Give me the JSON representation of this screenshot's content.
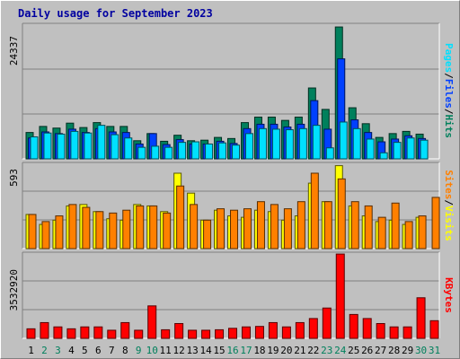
{
  "title": "Daily usage for September 2023",
  "colors": {
    "background": "#c0c0c0",
    "title": "#0000a0",
    "hits": "#00805c",
    "files": "#0040ff",
    "pages": "#00e0ff",
    "visits": "#ffff00",
    "sites": "#ff8000",
    "kbytes": "#ff0000",
    "weekend_label": "#00805c",
    "weekday_label": "#000000",
    "grid": "#808080"
  },
  "labels": {
    "pages": "Pages",
    "files": "Files",
    "hits": "Hits",
    "separator": "/",
    "sites": "Sites",
    "visits": "Visits",
    "kbytes": "KBytes"
  },
  "chart_data": [
    {
      "type": "bar",
      "panel": "hits-files-pages",
      "ymax_label": "24337",
      "ylim": [
        0,
        24337
      ],
      "x": [
        1,
        2,
        3,
        4,
        5,
        6,
        7,
        8,
        9,
        10,
        11,
        12,
        13,
        14,
        15,
        16,
        17,
        18,
        19,
        20,
        21,
        22,
        23,
        24,
        25,
        26,
        27,
        28,
        29,
        30,
        31
      ],
      "series": [
        {
          "name": "Hits",
          "values": [
            4800,
            5900,
            5600,
            6500,
            5700,
            6600,
            5900,
            5900,
            3300,
            4600,
            3200,
            4300,
            3300,
            3400,
            3900,
            3700,
            6600,
            7600,
            7600,
            7000,
            7600,
            12900,
            9000,
            24000,
            9300,
            6400,
            3900,
            4600,
            5000,
            4500,
            0
          ]
        },
        {
          "name": "Files",
          "values": [
            3800,
            4900,
            4600,
            5400,
            4800,
            5500,
            4900,
            4800,
            2700,
            4600,
            2600,
            3500,
            2700,
            2700,
            3200,
            2800,
            5500,
            6300,
            6300,
            5800,
            6300,
            10600,
            5400,
            18200,
            7100,
            4800,
            3100,
            3600,
            4200,
            3700,
            0
          ]
        },
        {
          "name": "Pages",
          "values": [
            4000,
            4700,
            4500,
            5000,
            4700,
            6100,
            4400,
            3800,
            2100,
            2300,
            2100,
            3000,
            3100,
            2700,
            2900,
            2500,
            4600,
            5500,
            5400,
            5300,
            5500,
            6100,
            2000,
            6700,
            5500,
            3600,
            1100,
            3000,
            3800,
            3400,
            0
          ]
        }
      ]
    },
    {
      "type": "bar",
      "panel": "sites-visits",
      "ymax_label": "593",
      "ylim": [
        0,
        593
      ],
      "x": [
        1,
        2,
        3,
        4,
        5,
        6,
        7,
        8,
        9,
        10,
        11,
        12,
        13,
        14,
        15,
        16,
        17,
        18,
        19,
        20,
        21,
        22,
        23,
        24,
        25,
        26,
        27,
        28,
        29,
        30,
        31
      ],
      "series": [
        {
          "name": "Visits",
          "values": [
            240,
            170,
            200,
            300,
            310,
            260,
            210,
            200,
            310,
            300,
            260,
            530,
            390,
            200,
            270,
            230,
            220,
            270,
            260,
            200,
            230,
            460,
            330,
            583,
            300,
            230,
            190,
            200,
            170,
            220,
            0
          ]
        },
        {
          "name": "Sites",
          "values": [
            240,
            190,
            230,
            310,
            290,
            260,
            250,
            270,
            300,
            300,
            250,
            440,
            310,
            200,
            280,
            270,
            280,
            330,
            310,
            280,
            330,
            530,
            330,
            490,
            330,
            300,
            220,
            320,
            190,
            230,
            360
          ]
        }
      ]
    },
    {
      "type": "bar",
      "panel": "kbytes",
      "ymax_label": "3532920",
      "ylim": [
        0,
        3532920
      ],
      "x": [
        1,
        2,
        3,
        4,
        5,
        6,
        7,
        8,
        9,
        10,
        11,
        12,
        13,
        14,
        15,
        16,
        17,
        18,
        19,
        20,
        21,
        22,
        23,
        24,
        25,
        26,
        27,
        28,
        29,
        30,
        31
      ],
      "series": [
        {
          "name": "KBytes",
          "values": [
            400000,
            660000,
            480000,
            400000,
            480000,
            480000,
            340000,
            660000,
            340000,
            1360000,
            360000,
            620000,
            340000,
            340000,
            360000,
            420000,
            480000,
            500000,
            660000,
            480000,
            660000,
            830000,
            1270000,
            3530000,
            1000000,
            830000,
            620000,
            480000,
            480000,
            1700000,
            740000
          ]
        }
      ]
    }
  ]
}
